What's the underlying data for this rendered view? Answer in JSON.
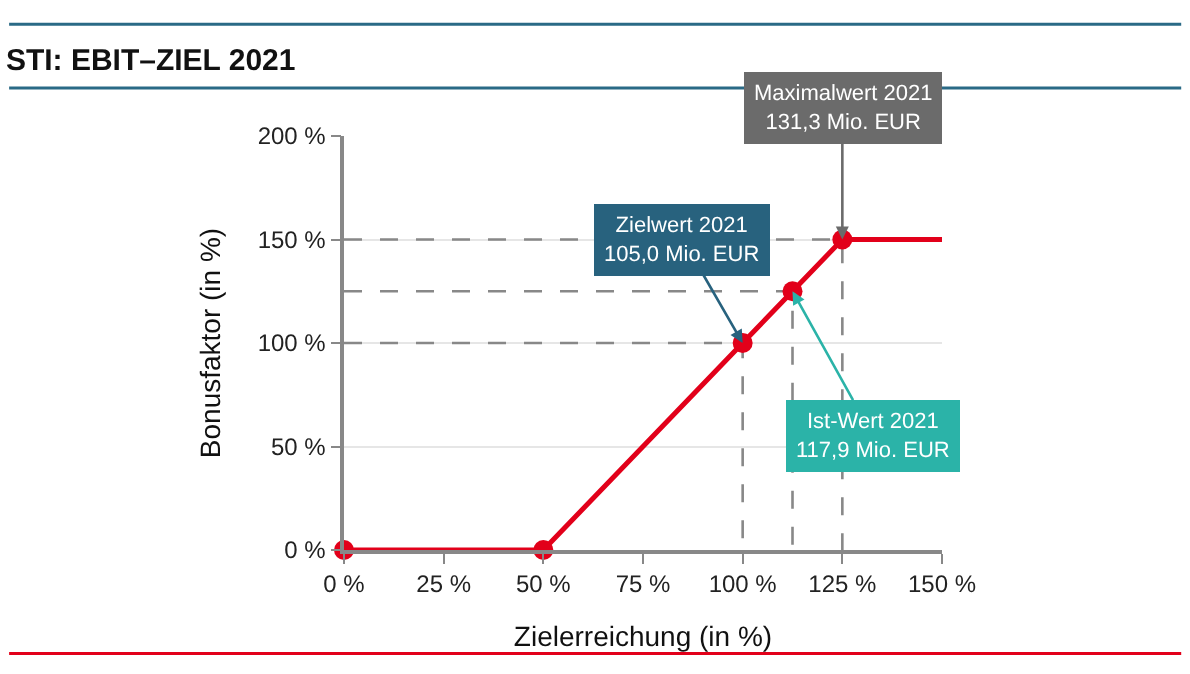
{
  "chart_data": {
    "type": "line",
    "title": "STI: EBIT–ZIEL 2021",
    "xlabel": "Zielerreichung (in %)",
    "ylabel": "Bonusfaktor (in %)",
    "xlim": [
      0,
      150
    ],
    "xticks": [
      {
        "value": 0,
        "label": "0 %"
      },
      {
        "value": 25,
        "label": "25 %"
      },
      {
        "value": 50,
        "label": "50 %"
      },
      {
        "value": 75,
        "label": "75 %"
      },
      {
        "value": 100,
        "label": "100 %"
      },
      {
        "value": 125,
        "label": "125 %"
      },
      {
        "value": 150,
        "label": "150 %"
      }
    ],
    "ylim": [
      0,
      200
    ],
    "yticks": [
      {
        "value": 0,
        "label": "0 %"
      },
      {
        "value": 50,
        "label": "50 %"
      },
      {
        "value": 100,
        "label": "100 %"
      },
      {
        "value": 150,
        "label": "150 %"
      },
      {
        "value": 200,
        "label": "200 %"
      }
    ],
    "grid": "y",
    "series": [
      {
        "color": "#888888",
        "line_style": "dashed",
        "marker": "none",
        "x": [
          0,
          100,
          100,
          null,
          0,
          112.5,
          112.5,
          null,
          0,
          125,
          125
        ],
        "values": [
          100,
          100,
          0,
          null,
          125,
          125,
          0,
          null,
          150,
          150,
          0
        ]
      },
      {
        "color": "#e2001a",
        "line_style": "solid",
        "marker": "none",
        "x": [
          0,
          50,
          100,
          112.5,
          125,
          150
        ],
        "values": [
          0,
          0,
          100,
          125,
          150,
          150
        ]
      },
      {
        "type": "scatter",
        "color": "#e2001a",
        "marker": "circle",
        "x": [
          0,
          50,
          100,
          112.5,
          125
        ],
        "values": [
          0,
          0,
          100,
          125,
          150
        ]
      }
    ],
    "annotations": [
      {
        "text": "Zielwert 2021\n105,0 Mio. EUR",
        "x": 100,
        "y": 100
      },
      {
        "text": "Ist-Wert 2021\n117,9 Mio. EUR",
        "x": 112.5,
        "y": 125
      },
      {
        "text": "Maximalwert 2021\n131,3 Mio. EUR",
        "x": 125,
        "y": 150
      }
    ]
  }
}
